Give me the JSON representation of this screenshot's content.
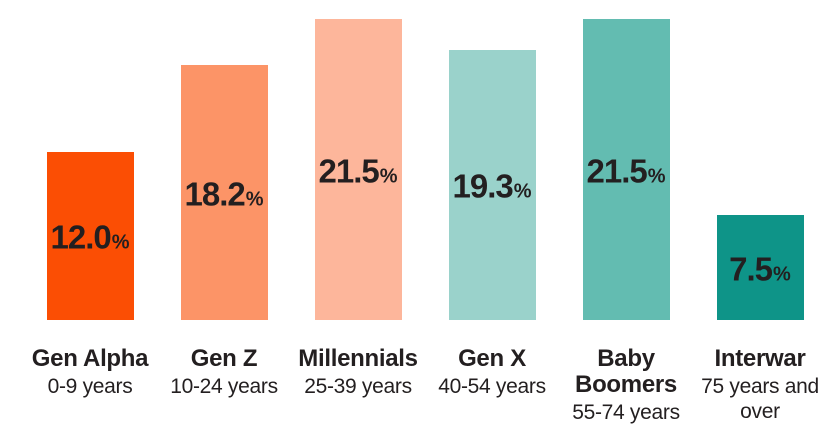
{
  "chart_data": {
    "type": "bar",
    "categories": [
      "Gen Alpha",
      "Gen Z",
      "Millennials",
      "Gen X",
      "Baby Boomers",
      "Interwar"
    ],
    "values": [
      12.0,
      18.2,
      21.5,
      19.3,
      21.5,
      7.5
    ],
    "unit": "%",
    "percent_suffix": "%",
    "ylim": [
      0,
      22.9
    ],
    "grid": false,
    "axes_visible": false,
    "value_labels_position": "inside-center",
    "text_color": "#231f20",
    "background_color": "#ffffff",
    "bars": [
      {
        "name": "Gen Alpha",
        "age_range": "0-9 years",
        "value": 12.0,
        "value_label": "12.0",
        "color": "#fb4e04"
      },
      {
        "name": "Gen Z",
        "age_range": "10-24 years",
        "value": 18.2,
        "value_label": "18.2",
        "color": "#fc9467"
      },
      {
        "name": "Millennials",
        "age_range": "25-39 years",
        "value": 21.5,
        "value_label": "21.5",
        "color": "#fdb69b"
      },
      {
        "name": "Gen X",
        "age_range": "40-54 years",
        "value": 19.3,
        "value_label": "19.3",
        "color": "#9ad2cb"
      },
      {
        "name": "Baby Boomers",
        "age_range": "55-74 years",
        "value": 21.5,
        "value_label": "21.5",
        "color": "#63bcb1"
      },
      {
        "name": "Interwar",
        "age_range": "75 years and over",
        "value": 7.5,
        "value_label": "7.5",
        "color": "#0e9488"
      }
    ]
  }
}
